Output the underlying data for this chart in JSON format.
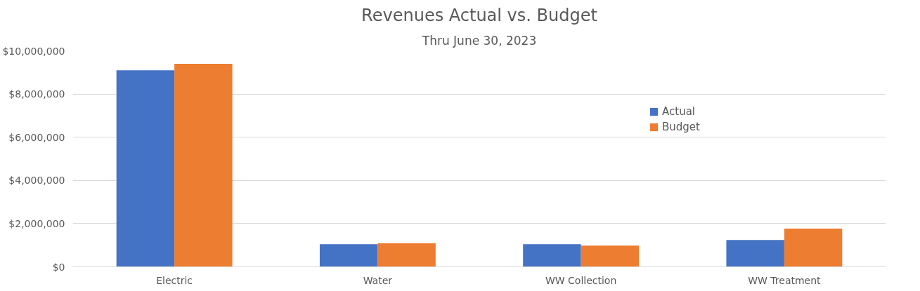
{
  "chart_data": {
    "type": "bar",
    "title": "Revenues Actual vs. Budget",
    "subtitle": "Thru June 30, 2023",
    "categories": [
      "Electric",
      "Water",
      "WW Collection",
      "WW Treatment"
    ],
    "series": [
      {
        "name": "Actual",
        "color": "#4472c4",
        "values": [
          9100000,
          1050000,
          1050000,
          1240000
        ]
      },
      {
        "name": "Budget",
        "color": "#ed7d31",
        "values": [
          9400000,
          1090000,
          980000,
          1770000
        ]
      }
    ],
    "ylim": [
      0,
      10000000
    ],
    "yticks": [
      {
        "value": 0,
        "label": "$0"
      },
      {
        "value": 2000000,
        "label": "$2,000,000"
      },
      {
        "value": 4000000,
        "label": "$4,000,000"
      },
      {
        "value": 6000000,
        "label": "$6,000,000"
      },
      {
        "value": 8000000,
        "label": "$8,000,000"
      },
      {
        "value": 10000000,
        "label": "$10,000,000"
      }
    ],
    "grid": "y",
    "legend": "top right"
  }
}
